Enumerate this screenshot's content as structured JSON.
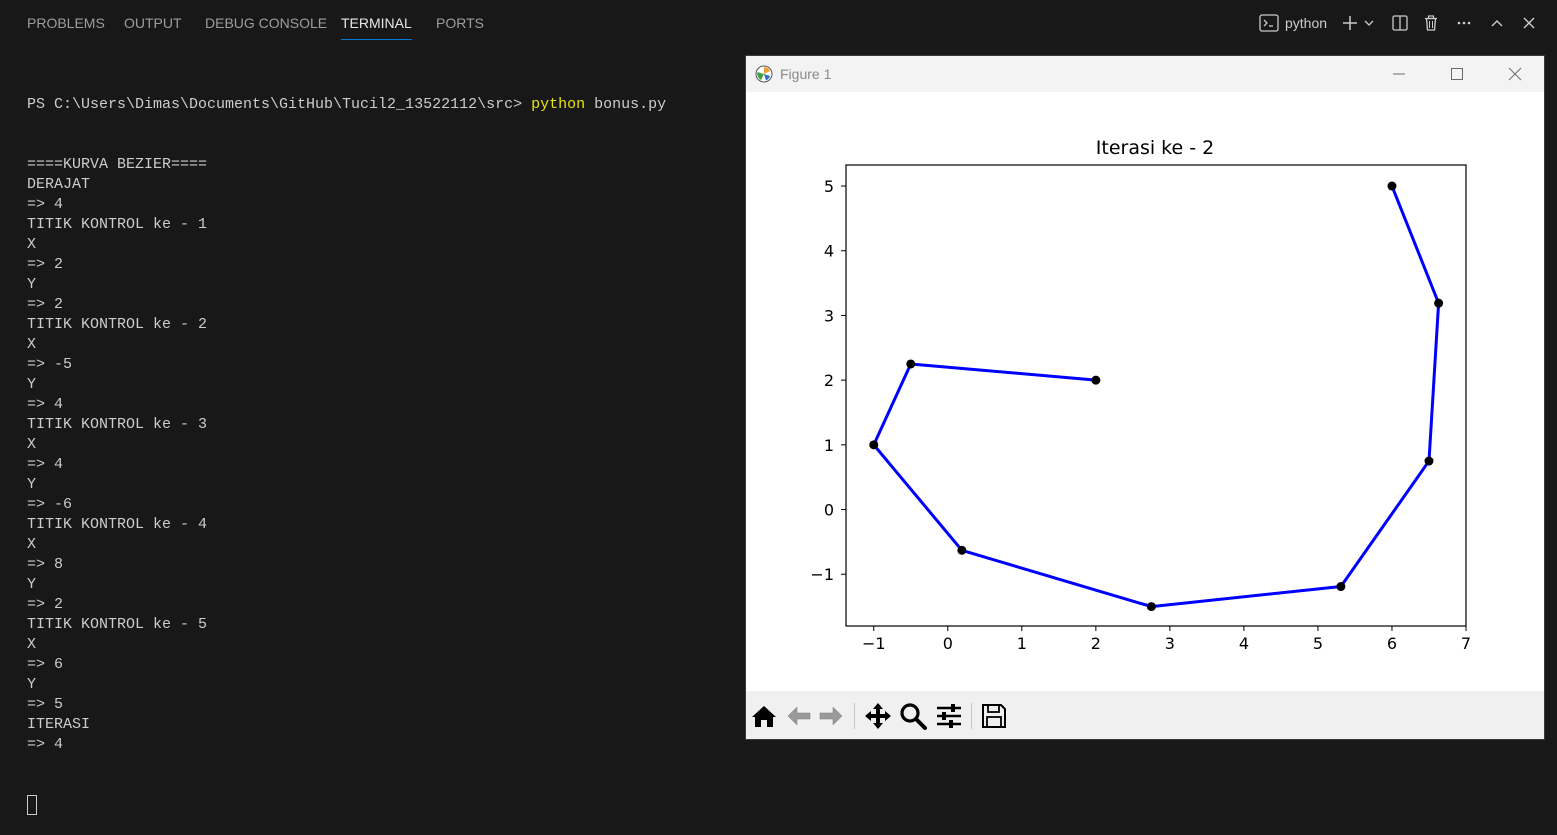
{
  "panel": {
    "tabs": [
      {
        "label": "PROBLEMS",
        "active": false
      },
      {
        "label": "OUTPUT",
        "active": false
      },
      {
        "label": "DEBUG CONSOLE",
        "active": false
      },
      {
        "label": "TERMINAL",
        "active": true
      },
      {
        "label": "PORTS",
        "active": false
      }
    ],
    "terminal_name": "python"
  },
  "terminal": {
    "prompt": "PS C:\\Users\\Dimas\\Documents\\GitHub\\Tucil2_13522112\\src> ",
    "command": "python",
    "args": " bonus.py",
    "lines": [
      "====KURVA BEZIER====",
      "DERAJAT",
      "=> 4",
      "TITIK KONTROL ke - 1",
      "X",
      "=> 2",
      "Y",
      "=> 2",
      "TITIK KONTROL ke - 2",
      "X",
      "=> -5",
      "Y",
      "=> 4",
      "TITIK KONTROL ke - 3",
      "X",
      "=> 4",
      "Y",
      "=> -6",
      "TITIK KONTROL ke - 4",
      "X",
      "=> 8",
      "Y",
      "=> 2",
      "TITIK KONTROL ke - 5",
      "X",
      "=> 6",
      "Y",
      "=> 5",
      "ITERASI",
      "=> 4"
    ]
  },
  "figure": {
    "window_title": "Figure 1"
  },
  "chart_data": {
    "type": "line",
    "title": "Iterasi ke - 2",
    "xlabel": "",
    "ylabel": "",
    "xlim": [
      -1.375,
      7.0
    ],
    "ylim": [
      -1.8,
      5.325
    ],
    "xticks": [
      -1,
      0,
      1,
      2,
      3,
      4,
      5,
      6,
      7
    ],
    "yticks": [
      -1,
      0,
      1,
      2,
      3,
      4,
      5
    ],
    "grid": false,
    "color": "#0000ff",
    "marker_color": "#000000",
    "x": [
      2,
      -0.5,
      -1,
      0.19,
      2.75,
      5.31,
      6.5,
      6.63,
      6
    ],
    "y": [
      2,
      2.25,
      1,
      -0.63,
      -1.5,
      -1.19,
      0.75,
      3.19,
      5
    ]
  }
}
